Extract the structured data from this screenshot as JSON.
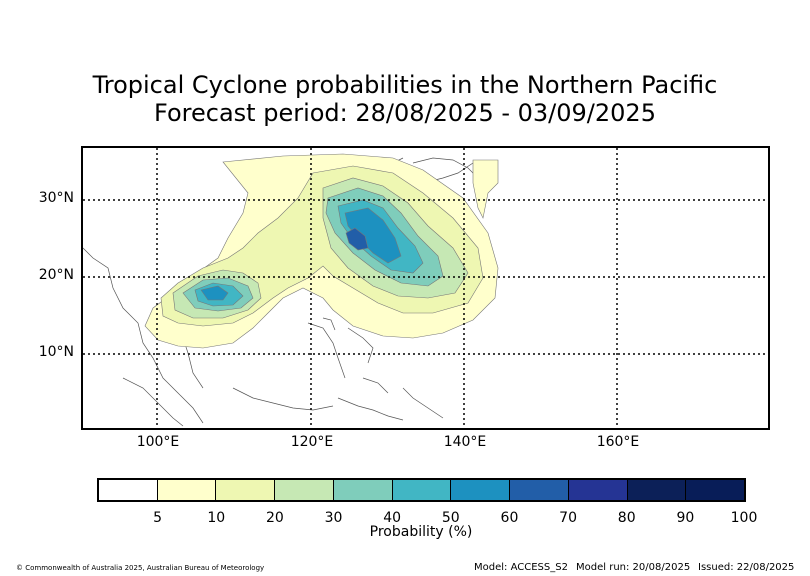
{
  "title_line1": "Tropical Cyclone probabilities in the Northern Pacific",
  "title_line2": "Forecast period: 28/08/2025 - 03/09/2025",
  "map": {
    "lat_labels": [
      "30°N",
      "20°N",
      "10°N"
    ],
    "lon_labels": [
      "100°E",
      "120°E",
      "140°E",
      "160°E"
    ],
    "grid": "dotted"
  },
  "colorbar": {
    "label": "Probability (%)",
    "ticks": [
      "5",
      "10",
      "20",
      "30",
      "40",
      "50",
      "60",
      "70",
      "80",
      "90",
      "100"
    ],
    "colors": [
      "#ffffff",
      "#ffffcc",
      "#eef7b2",
      "#c6e8b4",
      "#7fcdbb",
      "#41b6c4",
      "#1d91c0",
      "#225ea8",
      "#253494",
      "#0c2058",
      "#081d58"
    ]
  },
  "footer": {
    "copyright": "© Commonwealth of Australia 2025, Australian Bureau of Meteorology",
    "model": "Model: ACCESS_S2",
    "model_run": "Model run: 20/08/2025",
    "issued": "Issued: 22/08/2025"
  }
}
